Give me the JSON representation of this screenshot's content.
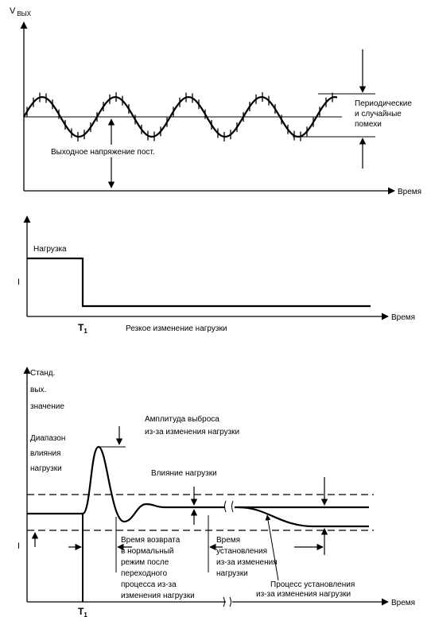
{
  "panel1": {
    "y_label": "V",
    "y_subscript": "ВЫХ",
    "x_label": "Время",
    "periodic_noise_line1": "Периодические",
    "periodic_noise_line2": "и случайные",
    "periodic_noise_line3": "помехи",
    "dc_output_label": "Выходное напряжение пост."
  },
  "panel2": {
    "y_label": "I",
    "x_label": "Время",
    "load_label": "Нагрузка",
    "t1_label": "T",
    "t1_sub": "1",
    "caption": "Резкое изменение нагрузки"
  },
  "panel3": {
    "y_label_line1": "Станд.",
    "y_label_line2": "вых.",
    "y_label_line3": "значение",
    "band_line1": "Диапазон",
    "band_line2": "влияния",
    "band_line3": "нагрузки",
    "overshoot_line1": "Амплитуда выброса",
    "overshoot_line2": "из-за изменения нагрузки",
    "load_effect": "Влияние нагрузки",
    "recovery_line1": "Время возврата",
    "recovery_line2": "в нормальный",
    "recovery_line3": "режим после",
    "recovery_line4": "переходного",
    "recovery_line5": "процесса из-за",
    "recovery_line6": "изменения нагрузки",
    "settling_line1": "Время",
    "settling_line2": "установления",
    "settling_line3": "из-за изменения",
    "settling_line4": "нагрузки",
    "settle_process_line1": "Процесс установления",
    "settle_process_line2": "из-за изменения нагрузки",
    "x_label": "Время",
    "y_axis_letter": "I",
    "t1_label": "T",
    "t1_sub": "1"
  }
}
